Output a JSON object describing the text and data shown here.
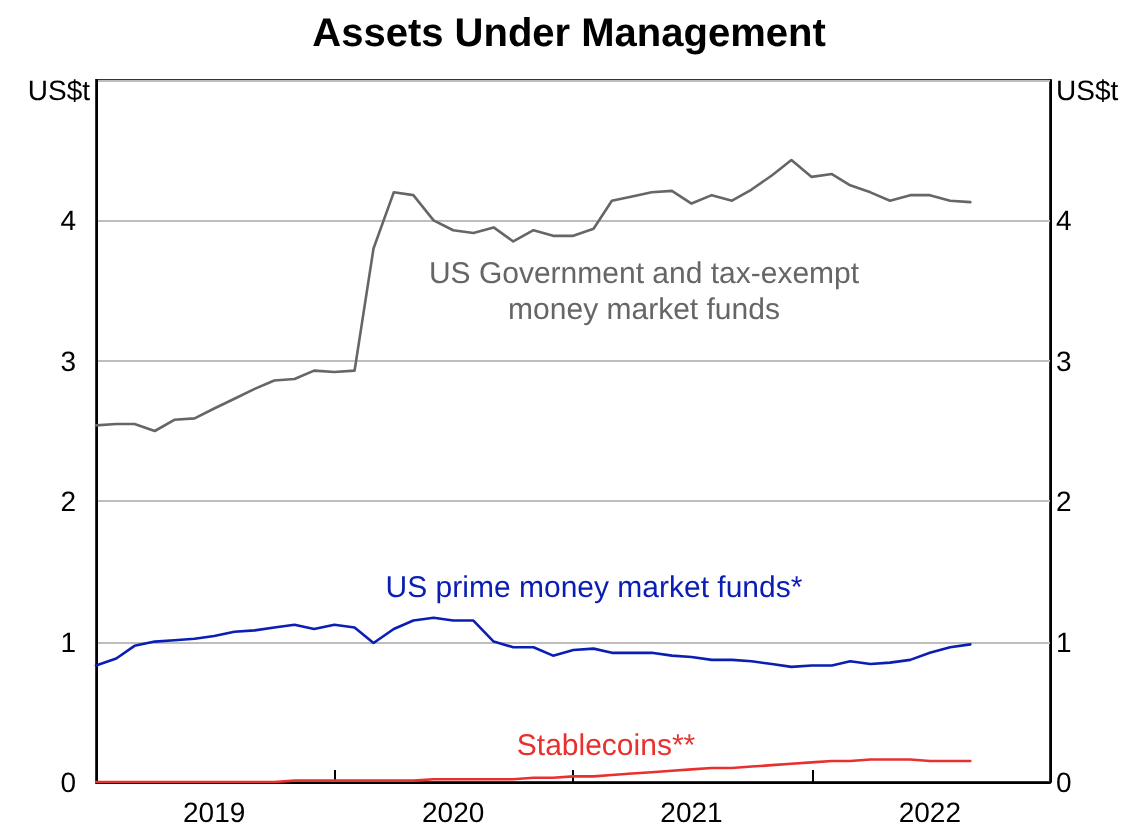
{
  "chart_data": {
    "type": "line",
    "title": "Assets Under Management",
    "ylabel": "US$t",
    "y2label": "US$t",
    "x": [
      "2019-01",
      "2019-02",
      "2019-03",
      "2019-04",
      "2019-05",
      "2019-06",
      "2019-07",
      "2019-08",
      "2019-09",
      "2019-10",
      "2019-11",
      "2019-12",
      "2020-01",
      "2020-02",
      "2020-03",
      "2020-04",
      "2020-05",
      "2020-06",
      "2020-07",
      "2020-08",
      "2020-09",
      "2020-10",
      "2020-11",
      "2020-12",
      "2021-01",
      "2021-02",
      "2021-03",
      "2021-04",
      "2021-05",
      "2021-06",
      "2021-07",
      "2021-08",
      "2021-09",
      "2021-10",
      "2021-11",
      "2021-12",
      "2022-01",
      "2022-02",
      "2022-03",
      "2022-04",
      "2022-05",
      "2022-06",
      "2022-07",
      "2022-08",
      "2022-09"
    ],
    "series": [
      {
        "name": "US Government and tax-exempt\nmoney market funds",
        "color": "#666666",
        "values": [
          2.54,
          2.55,
          2.55,
          2.5,
          2.58,
          2.59,
          2.66,
          2.73,
          2.8,
          2.86,
          2.87,
          2.93,
          2.92,
          2.93,
          3.8,
          4.2,
          4.18,
          4.0,
          3.93,
          3.91,
          3.95,
          3.85,
          3.93,
          3.89,
          3.89,
          3.94,
          4.14,
          4.17,
          4.2,
          4.21,
          4.12,
          4.18,
          4.14,
          4.22,
          4.32,
          4.43,
          4.31,
          4.33,
          4.25,
          4.2,
          4.14,
          4.18,
          4.18,
          4.14,
          4.13
        ]
      },
      {
        "name": "US prime money market funds*",
        "color": "#0a1eb4",
        "values": [
          0.83,
          0.88,
          0.97,
          1.0,
          1.01,
          1.02,
          1.04,
          1.07,
          1.08,
          1.1,
          1.12,
          1.09,
          1.12,
          1.1,
          0.99,
          1.09,
          1.15,
          1.17,
          1.15,
          1.15,
          1.0,
          0.96,
          0.96,
          0.9,
          0.94,
          0.95,
          0.92,
          0.92,
          0.92,
          0.9,
          0.89,
          0.87,
          0.87,
          0.86,
          0.84,
          0.82,
          0.83,
          0.83,
          0.86,
          0.84,
          0.85,
          0.87,
          0.92,
          0.96,
          0.98
        ]
      },
      {
        "name": "Stablecoins**",
        "color": "#e8312f",
        "values": [
          0,
          0,
          0,
          0,
          0,
          0,
          0,
          0,
          0,
          0,
          0.01,
          0.01,
          0.01,
          0.01,
          0.01,
          0.01,
          0.01,
          0.02,
          0.02,
          0.02,
          0.02,
          0.02,
          0.03,
          0.03,
          0.04,
          0.04,
          0.05,
          0.06,
          0.07,
          0.08,
          0.09,
          0.1,
          0.1,
          0.11,
          0.12,
          0.13,
          0.14,
          0.15,
          0.15,
          0.16,
          0.16,
          0.16,
          0.15,
          0.15,
          0.15
        ]
      }
    ],
    "xlim": [
      "2019-01",
      "2023-01"
    ],
    "xticks": [
      {
        "value": "2019-01",
        "label": null
      },
      {
        "value": "2019-07",
        "label": "2019"
      },
      {
        "value": "2020-01",
        "label": null
      },
      {
        "value": "2020-07",
        "label": "2020"
      },
      {
        "value": "2021-01",
        "label": null
      },
      {
        "value": "2021-07",
        "label": "2021"
      },
      {
        "value": "2022-01",
        "label": null
      },
      {
        "value": "2022-07",
        "label": "2022"
      },
      {
        "value": "2023-01",
        "label": null
      }
    ],
    "ylim": [
      0,
      5
    ],
    "yticks": [
      0,
      1,
      2,
      3,
      4
    ],
    "y2lim": [
      0,
      5
    ],
    "y2ticks": [
      0,
      1,
      2,
      3,
      4
    ],
    "grid": "y",
    "marker": "none",
    "line_style": "solid",
    "legend": false
  }
}
